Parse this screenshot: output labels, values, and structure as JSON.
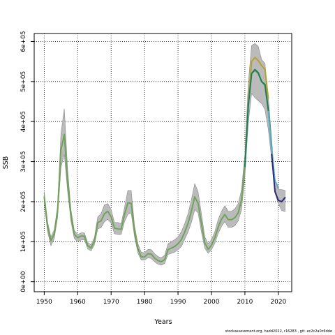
{
  "chart_data": {
    "type": "line",
    "title": "",
    "xlabel": "Years",
    "ylabel": "SSB",
    "xlim": [
      1947,
      2024
    ],
    "ylim": [
      -25000,
      620000
    ],
    "grid": true,
    "x_ticks": [
      1950,
      1960,
      1970,
      1980,
      1990,
      2000,
      2010,
      2020
    ],
    "y_ticks": [
      0,
      100000,
      200000,
      300000,
      400000,
      500000,
      600000
    ],
    "y_tick_labels": [
      "0e+00",
      "1e+05",
      "2e+05",
      "3e+05",
      "4e+05",
      "5e+05",
      "6e+05"
    ],
    "band": {
      "color": "#bbbbbb",
      "x": [
        1950,
        1951,
        1952,
        1953,
        1954,
        1955,
        1956,
        1957,
        1958,
        1959,
        1960,
        1961,
        1962,
        1963,
        1964,
        1965,
        1966,
        1967,
        1968,
        1969,
        1970,
        1971,
        1972,
        1973,
        1974,
        1975,
        1976,
        1977,
        1978,
        1979,
        1980,
        1981,
        1982,
        1983,
        1984,
        1985,
        1986,
        1987,
        1988,
        1989,
        1990,
        1991,
        1992,
        1993,
        1994,
        1995,
        1996,
        1997,
        1998,
        1999,
        2000,
        2001,
        2002,
        2003,
        2004,
        2005,
        2006,
        2007,
        2008,
        2009,
        2010,
        2011,
        2012,
        2013,
        2014,
        2015,
        2016,
        2017,
        2018,
        2019,
        2020,
        2021,
        2022
      ],
      "upper": [
        225000,
        150000,
        112000,
        130000,
        190000,
        370000,
        432000,
        280000,
        180000,
        128000,
        118000,
        122000,
        122000,
        98000,
        92000,
        110000,
        162000,
        170000,
        192000,
        195000,
        180000,
        148000,
        148000,
        145000,
        185000,
        228000,
        228000,
        140000,
        95000,
        74000,
        72000,
        81000,
        80000,
        70000,
        63000,
        60000,
        66000,
        95000,
        100000,
        105000,
        112000,
        125000,
        145000,
        170000,
        205000,
        245000,
        225000,
        170000,
        112000,
        95000,
        105000,
        125000,
        155000,
        176000,
        190000,
        176000,
        176000,
        182000,
        195000,
        230000,
        320000,
        495000,
        590000,
        595000,
        588000,
        555000,
        545000,
        462000,
        355000,
        252000,
        230000,
        230000,
        228000
      ],
      "lower": [
        195000,
        125000,
        90000,
        108000,
        160000,
        285000,
        318000,
        225000,
        150000,
        108000,
        100000,
        104000,
        105000,
        82000,
        77000,
        92000,
        132000,
        135000,
        150000,
        156000,
        146000,
        120000,
        118000,
        118000,
        150000,
        168000,
        172000,
        112000,
        72000,
        54000,
        54000,
        60000,
        58000,
        50000,
        44000,
        41000,
        46000,
        68000,
        71000,
        74000,
        80000,
        88000,
        106000,
        124000,
        148000,
        180000,
        172000,
        124000,
        84000,
        71000,
        80000,
        96000,
        120000,
        138000,
        150000,
        136000,
        136000,
        140000,
        152000,
        180000,
        264000,
        395000,
        470000,
        460000,
        452000,
        445000,
        430000,
        380000,
        306000,
        222000,
        195000,
        178000,
        175000
      ]
    },
    "series": [
      {
        "color": "#6fa35a",
        "x": [
          1950,
          1951,
          1952,
          1953,
          1954,
          1955,
          1956,
          1957,
          1958,
          1959,
          1960,
          1961,
          1962,
          1963,
          1964,
          1965,
          1966,
          1967,
          1968,
          1969,
          1970,
          1971,
          1972,
          1973,
          1974,
          1975,
          1976,
          1977,
          1978,
          1979,
          1980,
          1981,
          1982,
          1983,
          1984,
          1985,
          1986,
          1987,
          1988,
          1989,
          1990,
          1991,
          1992,
          1993,
          1994,
          1995,
          1996,
          1997,
          1998,
          1999,
          2000,
          2001,
          2002,
          2003,
          2004,
          2005,
          2006,
          2007,
          2008,
          2009,
          2010,
          2011,
          2012,
          2013,
          2014,
          2015,
          2016,
          2017
        ],
        "values": [
          212000,
          138000,
          102000,
          120000,
          178000,
          330000,
          368000,
          248000,
          165000,
          118000,
          110000,
          114000,
          114000,
          90000,
          84000,
          102000,
          148000,
          152000,
          170000,
          176000,
          162000,
          134000,
          132000,
          131000,
          168000,
          197000,
          196000,
          126000,
          83000,
          62000,
          62000,
          70000,
          69000,
          59000,
          53000,
          50000,
          55000,
          80000,
          84000,
          88000,
          95000,
          105000,
          124000,
          146000,
          176000,
          212000,
          196000,
          146000,
          97000,
          81000,
          91000,
          110000,
          136000,
          156000,
          168000,
          155000,
          155000,
          160000,
          172000,
          205000,
          290000,
          440000,
          520000,
          528000,
          520000,
          500000,
          490000,
          425000
        ]
      },
      {
        "color": "#b8a02e",
        "x": [
          2010,
          2011,
          2012,
          2013,
          2014,
          2015,
          2016,
          2017
        ],
        "values": [
          292000,
          445000,
          550000,
          560000,
          552000,
          540000,
          530000,
          458000
        ]
      },
      {
        "color": "#1a7f5a",
        "x": [
          2010,
          2011,
          2012,
          2013,
          2014,
          2015,
          2016,
          2017,
          2018
        ],
        "values": [
          288000,
          438000,
          520000,
          530000,
          522000,
          500000,
          493000,
          430000,
          335000
        ]
      },
      {
        "color": "#5ab0c8",
        "x": [
          2017,
          2018,
          2019,
          2020
        ],
        "values": [
          425000,
          330000,
          252000,
          236000
        ]
      },
      {
        "color": "#2b2a7a",
        "x": [
          2018,
          2019,
          2020,
          2021,
          2022
        ],
        "values": [
          318000,
          225000,
          203000,
          200000,
          210000
        ]
      }
    ],
    "footer": "stockassessment.org, hadd2022, r16283 , git: ec2c2a0c6dde"
  }
}
